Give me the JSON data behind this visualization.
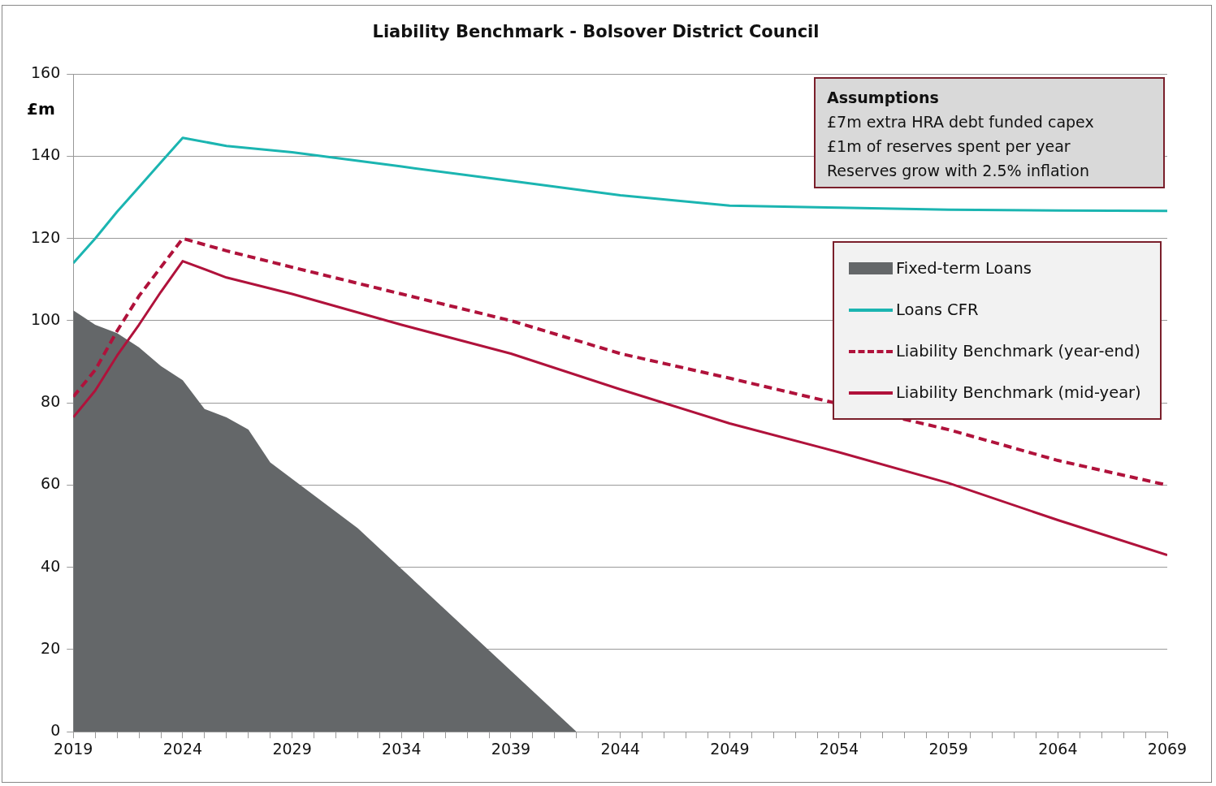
{
  "chart_data": {
    "type": "line",
    "title": "Liability Benchmark - Bolsover District Council",
    "ylabel": "£m",
    "annotations": [
      "Assumptions",
      "£7m extra HRA debt funded capex",
      "£1m of reserves spent per year",
      "Reserves grow with 2.5% inflation"
    ],
    "x": [
      2019,
      2020,
      2021,
      2022,
      2023,
      2024,
      2026,
      2029,
      2034,
      2039,
      2044,
      2049,
      2054,
      2059,
      2064,
      2069
    ],
    "series": [
      {
        "name": "Fixed-term Loans",
        "type": "area",
        "color": "#646769",
        "x": [
          2019,
          2020,
          2021,
          2022,
          2023,
          2024,
          2025,
          2026,
          2027,
          2028,
          2032,
          2042
        ],
        "values": [
          102.5,
          99,
          97,
          93.5,
          89,
          85.5,
          78.5,
          76.5,
          73.5,
          65.5,
          49.5,
          0
        ]
      },
      {
        "name": "Loans CFR",
        "color": "#1bb5b1",
        "values": [
          114,
          120,
          126.5,
          132.5,
          138.5,
          144.5,
          142.5,
          141,
          137.5,
          134,
          130.5,
          128,
          127.5,
          127,
          126.8,
          126.7
        ]
      },
      {
        "name": "Liability Benchmark (year-end)",
        "color": "#b0123b",
        "line_style": "dashed",
        "x": [
          2019,
          2020,
          2021,
          2022,
          2023,
          2024,
          2026,
          2029,
          2034,
          2039,
          2044,
          2049,
          2059,
          2064,
          2069
        ],
        "values": [
          81.5,
          88,
          97.5,
          106,
          113,
          120,
          117,
          113,
          106.5,
          100,
          92,
          86,
          73.5,
          66,
          60
        ]
      },
      {
        "name": "Liability Benchmark (mid-year)",
        "color": "#b0123b",
        "line_style": "solid",
        "values": [
          76.5,
          83,
          91.5,
          99,
          107,
          114.5,
          110.5,
          106.5,
          99,
          92,
          83.3,
          75,
          68,
          60.5,
          51.5,
          43
        ]
      }
    ],
    "xlim": [
      2019,
      2069
    ],
    "xticks": [
      2019,
      {
        "value": 2020,
        "label": null
      },
      {
        "value": 2021,
        "label": null
      },
      {
        "value": 2022,
        "label": null
      },
      {
        "value": 2023,
        "label": null
      },
      2024,
      {
        "value": 2025,
        "label": null
      },
      {
        "value": 2026,
        "label": null
      },
      {
        "value": 2027,
        "label": null
      },
      {
        "value": 2028,
        "label": null
      },
      2029,
      {
        "value": 2030,
        "label": null
      },
      {
        "value": 2031,
        "label": null
      },
      {
        "value": 2032,
        "label": null
      },
      {
        "value": 2033,
        "label": null
      },
      2034,
      {
        "value": 2035,
        "label": null
      },
      {
        "value": 2036,
        "label": null
      },
      {
        "value": 2037,
        "label": null
      },
      {
        "value": 2038,
        "label": null
      },
      2039,
      {
        "value": 2040,
        "label": null
      },
      {
        "value": 2041,
        "label": null
      },
      {
        "value": 2042,
        "label": null
      },
      {
        "value": 2043,
        "label": null
      },
      2044,
      {
        "value": 2045,
        "label": null
      },
      {
        "value": 2046,
        "label": null
      },
      {
        "value": 2047,
        "label": null
      },
      {
        "value": 2048,
        "label": null
      },
      2049,
      {
        "value": 2050,
        "label": null
      },
      {
        "value": 2051,
        "label": null
      },
      {
        "value": 2052,
        "label": null
      },
      {
        "value": 2053,
        "label": null
      },
      2054,
      {
        "value": 2055,
        "label": null
      },
      {
        "value": 2056,
        "label": null
      },
      {
        "value": 2057,
        "label": null
      },
      {
        "value": 2058,
        "label": null
      },
      2059,
      {
        "value": 2060,
        "label": null
      },
      {
        "value": 2061,
        "label": null
      },
      {
        "value": 2062,
        "label": null
      },
      {
        "value": 2063,
        "label": null
      },
      2064,
      {
        "value": 2065,
        "label": null
      },
      {
        "value": 2066,
        "label": null
      },
      {
        "value": 2067,
        "label": null
      },
      {
        "value": 2068,
        "label": null
      },
      2069
    ],
    "ylim": [
      0,
      160
    ],
    "yticks": [
      0,
      20,
      40,
      60,
      80,
      100,
      120,
      140,
      160
    ],
    "grid": "y",
    "legend": "top right",
    "marker": "none"
  }
}
